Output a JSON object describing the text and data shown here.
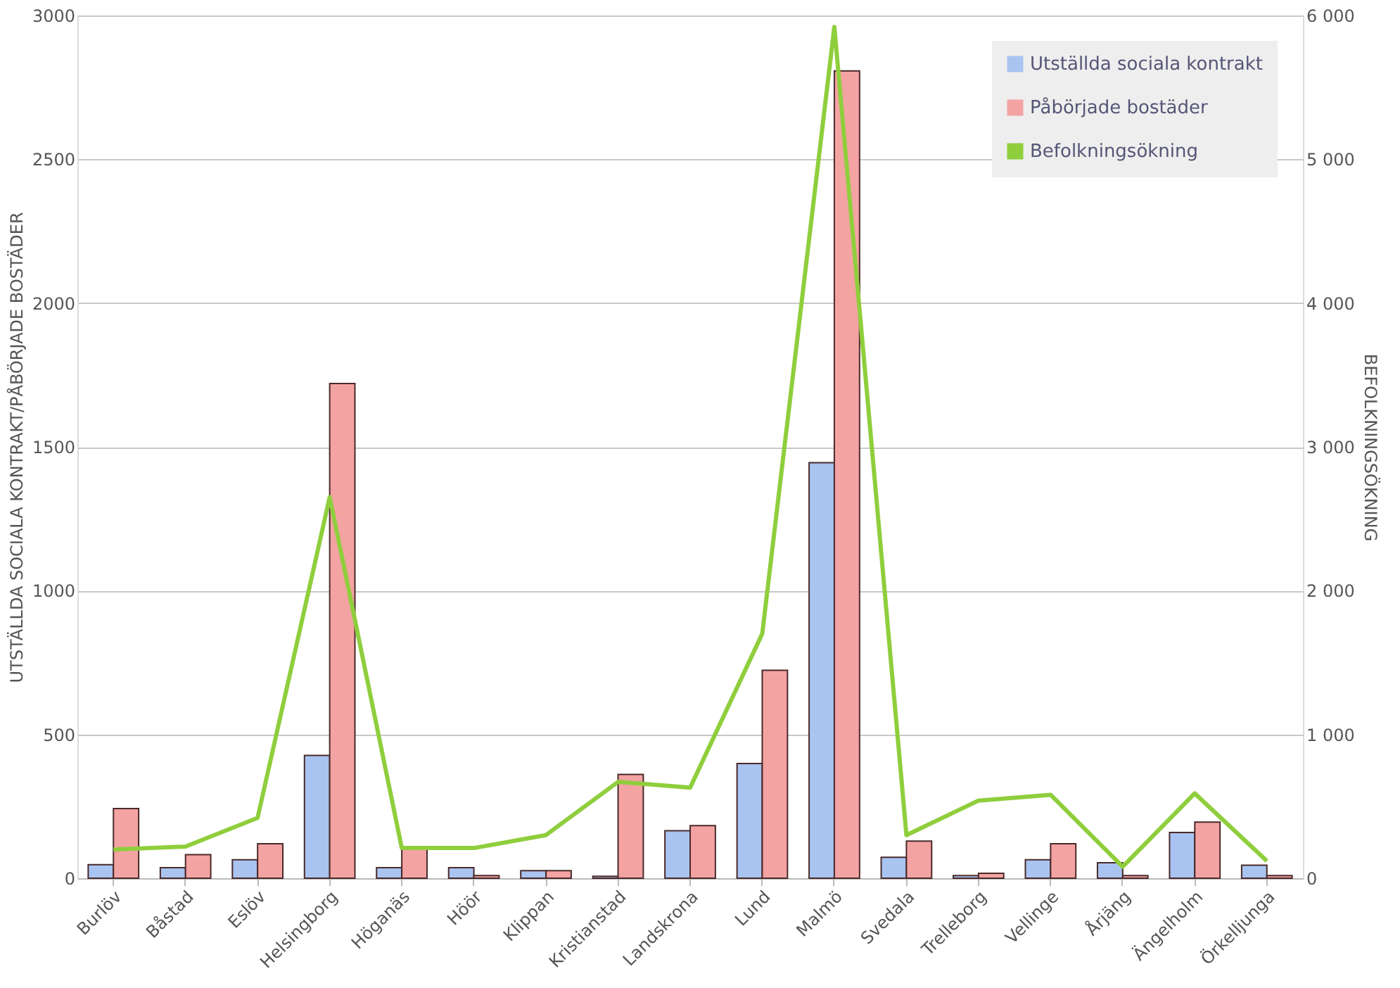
{
  "chart_data": {
    "type": "bar",
    "ylabel": "UTSTÄLLDA SOCIALA KONTRAKT/PÅBÖRJADE BOSTÄDER",
    "y2label": "BEFOLKNINGSÖKNING",
    "categories": [
      "Burlöv",
      "Båstad",
      "Eslöv",
      "Helsingborg",
      "Höganäs",
      "Höör",
      "Klippan",
      "Kristianstad",
      "Landskrona",
      "Lund",
      "Malmö",
      "Svedala",
      "Trelleborg",
      "Vellinge",
      "Årjäng",
      "Ängelholm",
      "Örkelljunga"
    ],
    "series": [
      {
        "name": "Utställda sociala kontrakt",
        "color": "#a9c4f0",
        "values": [
          47,
          37,
          64,
          427,
          37,
          37,
          26,
          7,
          165,
          399,
          1445,
          73,
          9,
          64,
          54,
          159,
          45
        ]
      },
      {
        "name": "Påbörjade bostäder",
        "color": "#f4a3a3",
        "values": [
          242,
          82,
          120,
          1720,
          110,
          9,
          26,
          361,
          183,
          723,
          2807,
          129,
          17,
          120,
          9,
          195,
          9
        ]
      },
      {
        "name": "Befolkningsökning",
        "type": "line",
        "axis": "y2",
        "color": "#8fce3c",
        "values": [
          200,
          220,
          420,
          2650,
          210,
          210,
          300,
          670,
          630,
          1700,
          5920,
          300,
          540,
          580,
          80,
          590,
          120
        ]
      }
    ],
    "ylim": [
      0,
      3000
    ],
    "yticks": [
      0,
      500,
      1000,
      1500,
      2000,
      2500,
      3000
    ],
    "y2lim": [
      0,
      6000
    ],
    "y2ticks": [
      0,
      {
        "value": 1000,
        "label": "1 000"
      },
      {
        "value": 2000,
        "label": "2 000"
      },
      {
        "value": 3000,
        "label": "3 000"
      },
      {
        "value": 4000,
        "label": "4 000"
      },
      {
        "value": 5000,
        "label": "5 000"
      },
      {
        "value": 6000,
        "label": "6 000"
      }
    ],
    "grid": "y",
    "legend": "top right"
  }
}
